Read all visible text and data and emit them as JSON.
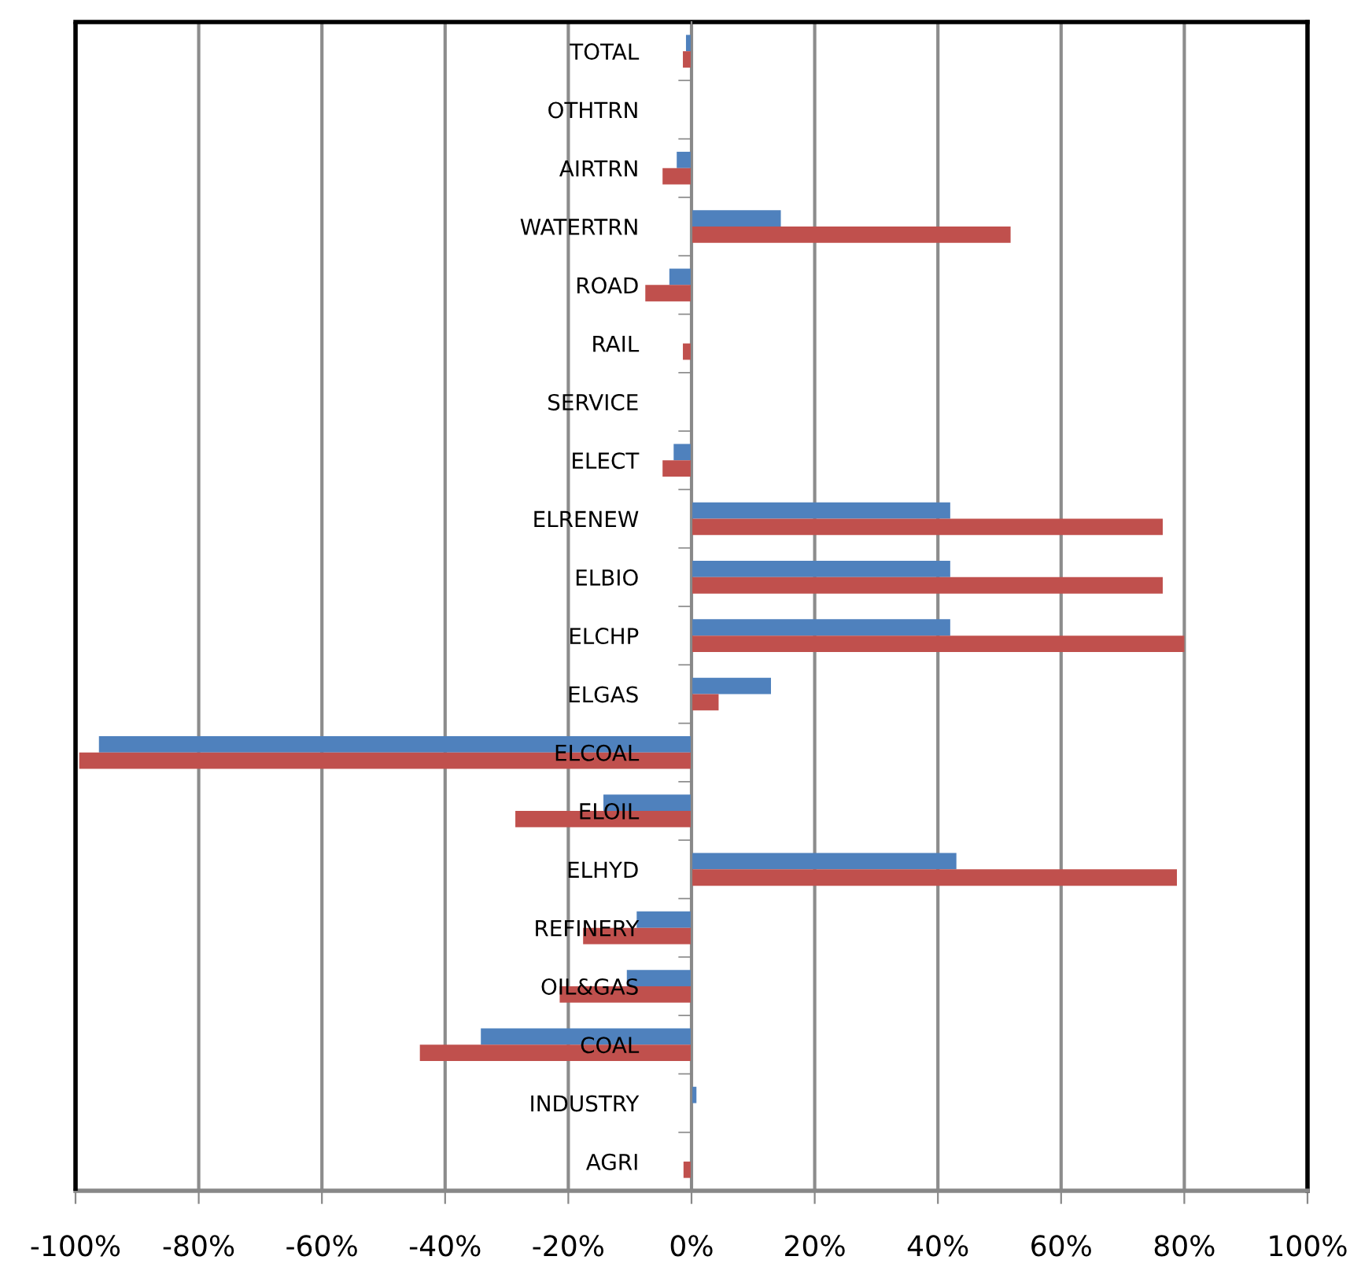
{
  "chart_data": {
    "type": "bar",
    "orientation": "horizontal",
    "categories": [
      "TOTAL",
      "OTHTRN",
      "AIRTRN",
      "WATERTRN",
      "ROAD",
      "RAIL",
      "SERVICE",
      "ELECT",
      "ELRENEW",
      "ELBIO",
      "ELCHP",
      "ELGAS",
      "ELCOAL",
      "ELOIL",
      "ELHYD",
      "REFINERY",
      "OIL&GAS",
      "COAL",
      "INDUSTRY",
      "AGRI"
    ],
    "series": [
      {
        "color": "#4f81bd",
        "values": [
          -0.9,
          0,
          -2.4,
          14.5,
          -3.6,
          0,
          0,
          -2.9,
          42,
          42,
          42,
          12.9,
          -96.2,
          -14.3,
          43,
          -8.9,
          -10.5,
          -34.2,
          0.8,
          0
        ]
      },
      {
        "color": "#c0504d",
        "values": [
          -1.4,
          0,
          -4.7,
          51.8,
          -7.5,
          -1.4,
          0,
          -4.7,
          76.5,
          76.5,
          80,
          4.4,
          -99.4,
          -28.6,
          78.8,
          -17.6,
          -21.4,
          -44.1,
          0,
          -1.3
        ]
      }
    ],
    "xlim": [
      -100,
      100
    ],
    "xticks": [
      {
        "value": -100,
        "label": "-100%"
      },
      {
        "value": -80,
        "label": "-80%"
      },
      {
        "value": -60,
        "label": "-60%"
      },
      {
        "value": -40,
        "label": "-40%"
      },
      {
        "value": -20,
        "label": "-20%"
      },
      {
        "value": 0,
        "label": "0%"
      },
      {
        "value": 20,
        "label": "20%"
      },
      {
        "value": 40,
        "label": "40%"
      },
      {
        "value": 60,
        "label": "60%"
      },
      {
        "value": 80,
        "label": "80%"
      },
      {
        "value": 100,
        "label": "100%"
      }
    ],
    "grid": "x",
    "legend": false
  }
}
